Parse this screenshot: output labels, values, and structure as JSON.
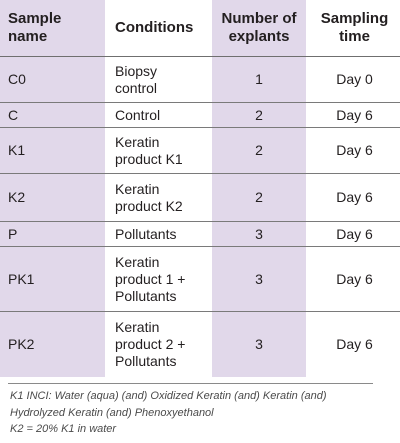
{
  "table": {
    "headers": {
      "sample_name": "Sample\nname",
      "conditions": "Conditions",
      "explants": "Number of\nexplants",
      "sampling_time": "Sampling\ntime"
    },
    "rows": [
      {
        "sample": "C0",
        "condition": "Biopsy\ncontrol",
        "explants": "1",
        "time": "Day 0"
      },
      {
        "sample": "C",
        "condition": "Control",
        "explants": "2",
        "time": "Day 6"
      },
      {
        "sample": "K1",
        "condition": "Keratin\nproduct K1",
        "explants": "2",
        "time": "Day 6"
      },
      {
        "sample": "K2",
        "condition": "Keratin\nproduct K2",
        "explants": "2",
        "time": "Day 6"
      },
      {
        "sample": "P",
        "condition": "Pollutants",
        "explants": "3",
        "time": "Day 6"
      },
      {
        "sample": "PK1",
        "condition": "Keratin\nproduct 1 +\nPollutants",
        "explants": "3",
        "time": "Day 6"
      },
      {
        "sample": "PK2",
        "condition": "Keratin\nproduct 2 +\nPollutants",
        "explants": "3",
        "time": "Day 6"
      }
    ]
  },
  "footnote": {
    "line1": "K1 INCI: Water (aqua) (and) Oxidized Keratin (and) Keratin (and)",
    "line2": "Hydrolyzed Keratin (and) Phenoxyethanol",
    "line3": "K2 = 20% K1 in water"
  },
  "colors": {
    "accent_column": "#e1d8ea",
    "text": "#231f20"
  }
}
